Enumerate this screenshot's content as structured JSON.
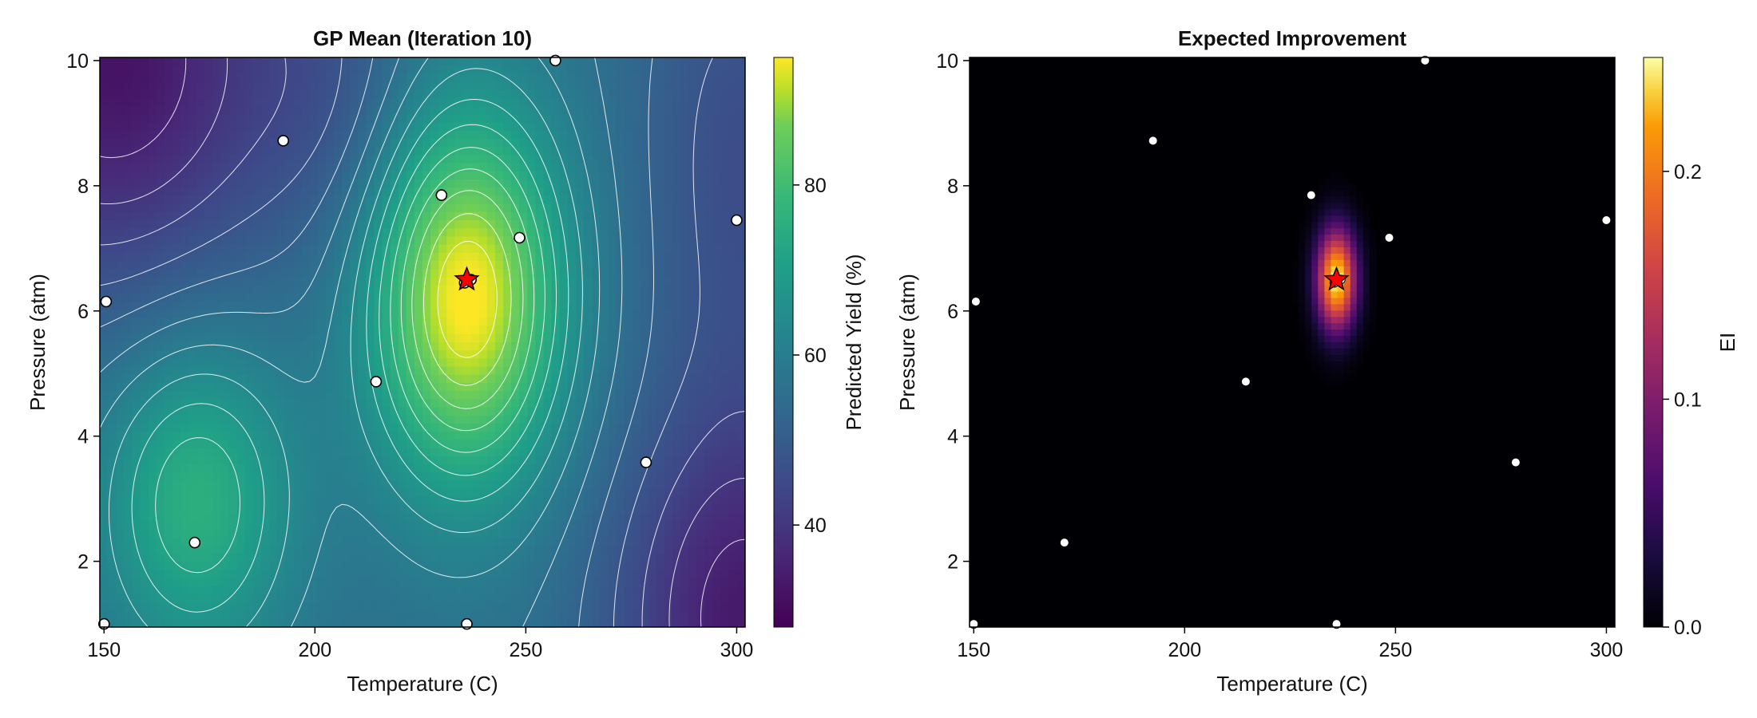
{
  "chart_data": [
    {
      "type": "heatmap",
      "title": "GP Mean (Iteration 10)",
      "xlabel": "Temperature (C)",
      "ylabel": "Pressure (atm)",
      "xlim": [
        149,
        302
      ],
      "ylim": [
        0.95,
        10.05
      ],
      "x_ticks": [
        "150",
        "200",
        "250",
        "300"
      ],
      "y_ticks": [
        "2",
        "4",
        "6",
        "8",
        "10"
      ],
      "colorbar": {
        "label": "Predicted Yield (%)",
        "range": [
          28,
          95
        ],
        "ticks": [
          "40",
          "60",
          "80"
        ],
        "colormap": "viridis"
      },
      "contours": true,
      "observations": [
        {
          "x": 150,
          "y": 1.0
        },
        {
          "x": 171.5,
          "y": 2.3
        },
        {
          "x": 150.5,
          "y": 6.15
        },
        {
          "x": 192.5,
          "y": 8.72
        },
        {
          "x": 214.5,
          "y": 4.87
        },
        {
          "x": 230,
          "y": 7.85
        },
        {
          "x": 236,
          "y": 1.0
        },
        {
          "x": 248.5,
          "y": 7.17
        },
        {
          "x": 257,
          "y": 10.0
        },
        {
          "x": 278.5,
          "y": 3.58
        },
        {
          "x": 300,
          "y": 7.45
        },
        {
          "x": 235.5,
          "y": 6.45
        },
        {
          "x": 237,
          "y": 6.5
        }
      ],
      "best_point": {
        "x": 236,
        "y": 6.5,
        "marker": "red-star"
      }
    },
    {
      "type": "heatmap",
      "title": "Expected Improvement",
      "xlabel": "Temperature (C)",
      "ylabel": "Pressure (atm)",
      "xlim": [
        149,
        302
      ],
      "ylim": [
        0.95,
        10.05
      ],
      "x_ticks": [
        "150",
        "200",
        "250",
        "300"
      ],
      "y_ticks": [
        "2",
        "4",
        "6",
        "8",
        "10"
      ],
      "colorbar": {
        "label": "EI",
        "range": [
          0,
          0.25
        ],
        "ticks": [
          "0.0",
          "0.1",
          "0.2"
        ],
        "colormap": "inferno"
      },
      "peak": {
        "x": 236,
        "y": 6.5,
        "value": 0.25
      },
      "observations": [
        {
          "x": 150,
          "y": 1.0
        },
        {
          "x": 171.5,
          "y": 2.3
        },
        {
          "x": 150.5,
          "y": 6.15
        },
        {
          "x": 192.5,
          "y": 8.72
        },
        {
          "x": 214.5,
          "y": 4.87
        },
        {
          "x": 230,
          "y": 7.85
        },
        {
          "x": 236,
          "y": 1.0
        },
        {
          "x": 248.5,
          "y": 7.17
        },
        {
          "x": 257,
          "y": 10.0
        },
        {
          "x": 278.5,
          "y": 3.58
        },
        {
          "x": 300,
          "y": 7.45
        },
        {
          "x": 235.5,
          "y": 6.45
        },
        {
          "x": 237,
          "y": 6.5
        }
      ],
      "best_point": {
        "x": 236,
        "y": 6.5,
        "marker": "red-star"
      }
    }
  ]
}
